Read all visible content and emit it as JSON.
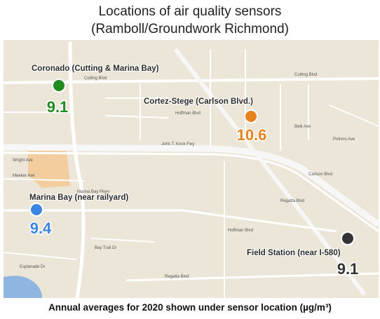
{
  "title": [
    "Locations of air quality sensors",
    "(Ramboll/Groundwork Richmond)"
  ],
  "sensors": [
    {
      "name": "Coronado (Cutting & Marina Bay)",
      "value": 9.1,
      "color": "#1f8a1f"
    },
    {
      "name": "Cortez-Stege (Carlson Blvd.)",
      "value": 10.6,
      "color": "#e8821e"
    },
    {
      "name": "Marina Bay (near railyard)",
      "value": 9.4,
      "color": "#3a86e0"
    },
    {
      "name": "Field Station (near I-580)",
      "value": 9.1,
      "color": "#333333"
    }
  ],
  "street_labels": [
    "Cutting Blvd",
    "Cutting Blvd",
    "John T. Knox Fwy",
    "Regatta Blvd",
    "Regatta Blvd",
    "Hoffman Blvd",
    "Wright Ave",
    "Meeker Ave",
    "Carlson Blvd",
    "Potrero Ave",
    "Belk Ave",
    "Bay Trail Dr",
    "Esplanade Dr",
    "Marina Bay Pkwy",
    "Hoffman Blvd"
  ],
  "caption": "Annual averages for 2020 shown under sensor location (µg/m³)"
}
